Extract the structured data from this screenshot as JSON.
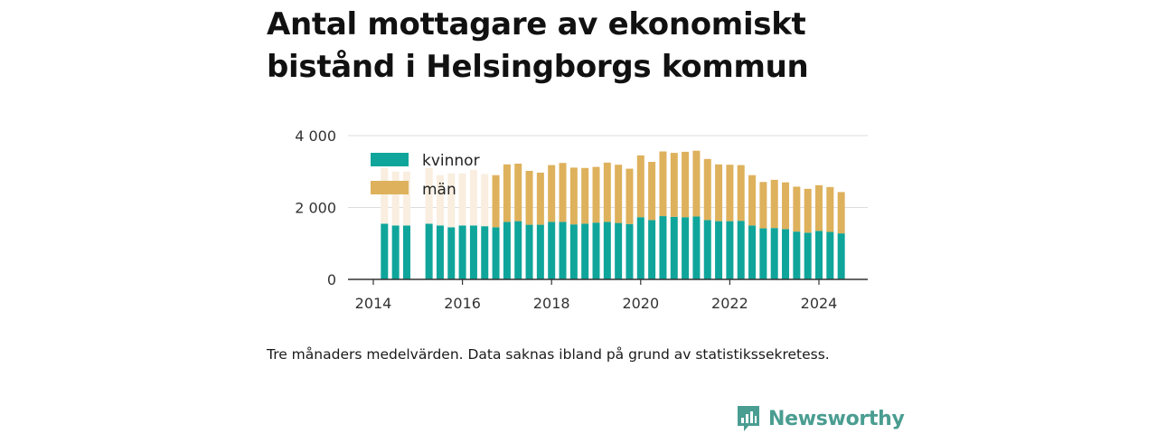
{
  "title": "Antal mottagare av ekonomiskt bistånd i Helsingborgs kommun",
  "note": "Tre månaders medelvärden. Data saknas ibland på grund av statistikssekretess.",
  "brand": "Newsworthy",
  "colors": {
    "kvinnor": "#0fa59b",
    "man": "#deb15c",
    "man_faded": "#f9eedf",
    "grid": "#dddddd",
    "axis": "#333333",
    "brand": "#4a9d91"
  },
  "chart_data": {
    "type": "bar",
    "stacked": true,
    "ylim": [
      0,
      4000
    ],
    "yticks": [
      0,
      2000,
      4000
    ],
    "ytick_labels": [
      "0",
      "2 000",
      "4 000"
    ],
    "xticks": [
      2014,
      2016,
      2018,
      2020,
      2022,
      2024
    ],
    "xtick_labels": [
      "2014",
      "2016",
      "2018",
      "2020",
      "2022",
      "2024"
    ],
    "grid": true,
    "legend_position": "top-left",
    "x": [
      2014.25,
      2014.5,
      2014.75,
      2015.0,
      2015.25,
      2015.5,
      2015.75,
      2016.0,
      2016.25,
      2016.5,
      2016.75,
      2017.0,
      2017.25,
      2017.5,
      2017.75,
      2018.0,
      2018.25,
      2018.5,
      2018.75,
      2019.0,
      2019.25,
      2019.5,
      2019.75,
      2020.0,
      2020.25,
      2020.5,
      2020.75,
      2021.0,
      2021.25,
      2021.5,
      2021.75,
      2022.0,
      2022.25,
      2022.5,
      2022.75,
      2023.0,
      2023.25,
      2023.5,
      2023.75,
      2024.0,
      2024.25,
      2024.5
    ],
    "series": [
      {
        "name": "kvinnor",
        "values": [
          1550,
          1500,
          1500,
          null,
          1550,
          1500,
          1450,
          1500,
          1500,
          1480,
          1450,
          1600,
          1620,
          1520,
          1520,
          1600,
          1600,
          1530,
          1550,
          1580,
          1600,
          1570,
          1540,
          1730,
          1650,
          1760,
          1740,
          1730,
          1750,
          1650,
          1620,
          1620,
          1630,
          1500,
          1420,
          1430,
          1400,
          1330,
          1300,
          1350,
          1320,
          1280
        ]
      },
      {
        "name": "män",
        "values": [
          1550,
          1500,
          1500,
          null,
          1550,
          1400,
          1500,
          1450,
          1550,
          1450,
          1450,
          1600,
          1600,
          1500,
          1450,
          1580,
          1640,
          1580,
          1550,
          1550,
          1650,
          1620,
          1540,
          1720,
          1620,
          1800,
          1780,
          1820,
          1830,
          1700,
          1580,
          1570,
          1550,
          1400,
          1290,
          1340,
          1300,
          1250,
          1220,
          1270,
          1250,
          1150
        ]
      }
    ],
    "faded_man_indices": [
      0,
      1,
      2,
      4,
      5,
      6,
      7,
      8,
      9
    ]
  }
}
